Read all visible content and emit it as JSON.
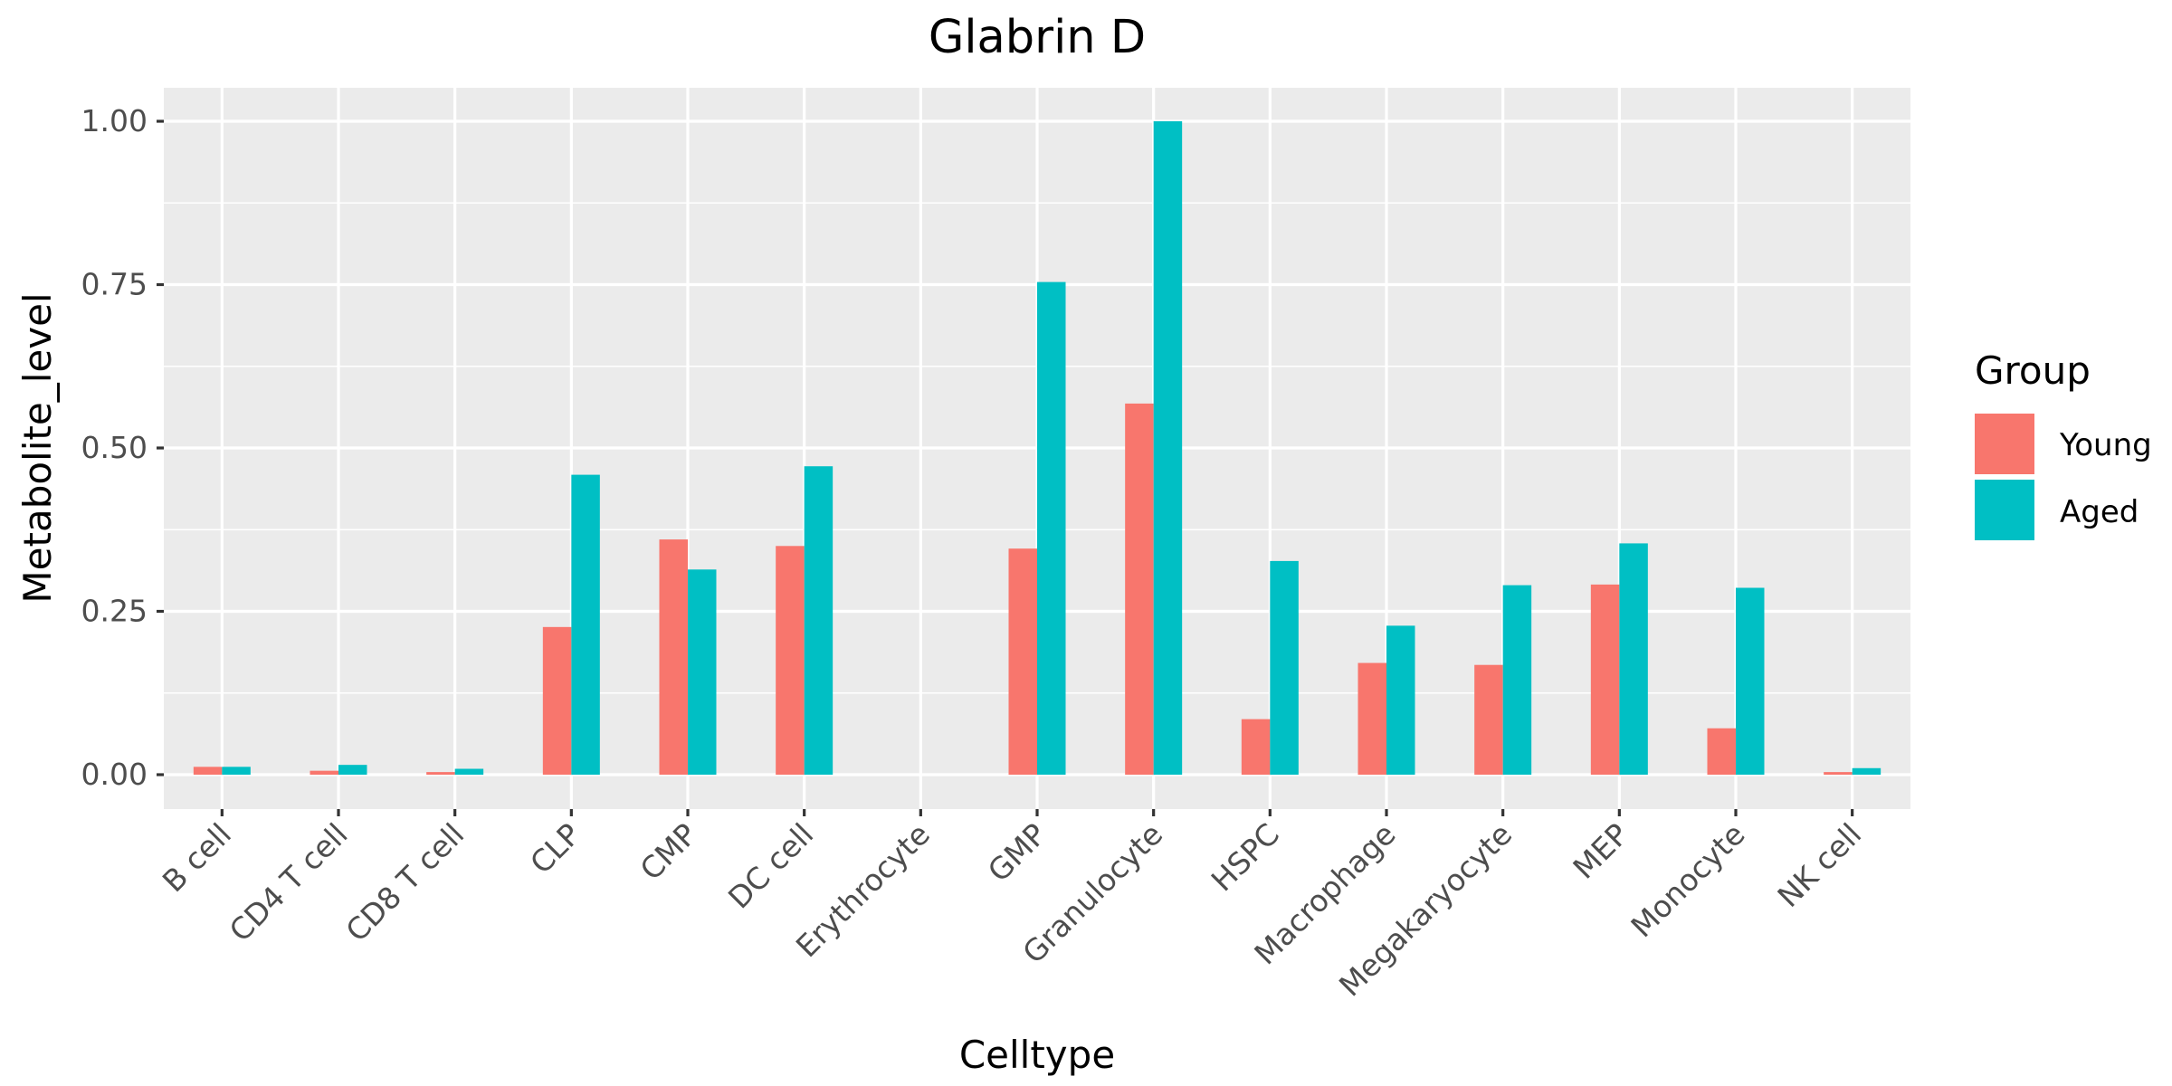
{
  "chart_data": {
    "type": "bar",
    "title": "Glabrin D",
    "xlabel": "Celltype",
    "ylabel": "Metabolite_level",
    "ylim": [
      -0.05,
      1.05
    ],
    "yticks": [
      0,
      0.25,
      0.5,
      0.75,
      1.0
    ],
    "ytick_labels": [
      "0.00",
      "0.25",
      "0.50",
      "0.75",
      "1.00"
    ],
    "grid": true,
    "legend": {
      "title": "Group",
      "position": "right"
    },
    "categories": [
      "B cell",
      "CD4 T cell",
      "CD8 T cell",
      "CLP",
      "CMP",
      "DC cell",
      "Erythrocyte",
      "GMP",
      "Granulocyte",
      "HSPC",
      "Macrophage",
      "Megakaryocyte",
      "MEP",
      "Monocyte",
      "NK cell"
    ],
    "series": [
      {
        "name": "Young",
        "color": "#F8766D",
        "values": [
          0.012,
          0.006,
          0.004,
          0.226,
          0.36,
          0.35,
          0,
          0.346,
          0.568,
          0.085,
          0.171,
          0.168,
          0.291,
          0.071,
          0.004
        ]
      },
      {
        "name": "Aged",
        "color": "#00BFC4",
        "values": [
          0.012,
          0.015,
          0.009,
          0.459,
          0.314,
          0.472,
          0,
          0.754,
          1.0,
          0.327,
          0.228,
          0.29,
          0.354,
          0.286,
          0.01
        ]
      }
    ]
  }
}
